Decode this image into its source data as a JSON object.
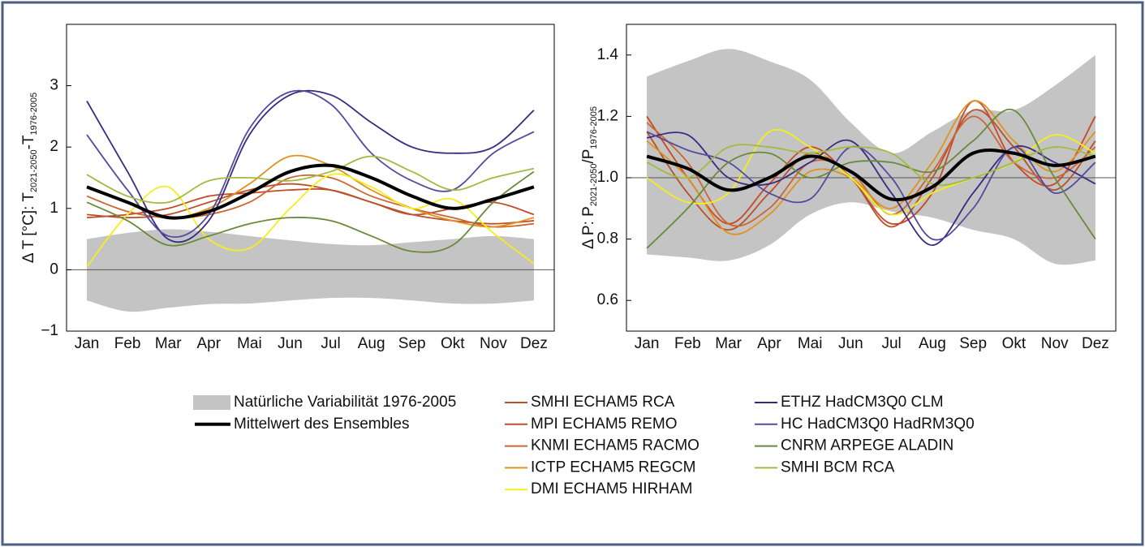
{
  "chart_data": [
    {
      "type": "line",
      "ylabel": [
        "Δ T [°C]: T",
        "2021-2050",
        "-T",
        "1976-2005"
      ],
      "categories": [
        "Jan",
        "Feb",
        "Mar",
        "Apr",
        "Mai",
        "Jun",
        "Jul",
        "Aug",
        "Sep",
        "Okt",
        "Nov",
        "Dez"
      ],
      "ylim": [
        -1,
        4
      ],
      "yticks": [
        {
          "value": -1,
          "label": "−1"
        },
        0,
        1,
        2,
        3
      ],
      "reference_line": 0,
      "band": {
        "name": "Natürliche Variabilität 1976-2005",
        "color": "#c4c4c4",
        "lower": [
          -0.5,
          -0.68,
          -0.62,
          -0.56,
          -0.55,
          -0.5,
          -0.46,
          -0.46,
          -0.5,
          -0.55,
          -0.55,
          -0.5
        ],
        "upper": [
          0.5,
          0.6,
          0.66,
          0.62,
          0.55,
          0.48,
          0.42,
          0.4,
          0.45,
          0.5,
          0.55,
          0.5
        ]
      },
      "series": [
        {
          "name": "SMHI ECHAM5 RCA",
          "color": "#c44a28",
          "values": [
            0.85,
            0.9,
            1.0,
            1.2,
            1.25,
            1.3,
            1.3,
            1.1,
            0.9,
            1.0,
            1.1,
            0.9
          ]
        },
        {
          "name": "MPI ECHAM5 REMO",
          "color": "#b8502c",
          "values": [
            0.9,
            0.85,
            0.9,
            1.1,
            1.3,
            1.4,
            1.3,
            1.1,
            0.9,
            0.8,
            0.75,
            0.8
          ]
        },
        {
          "name": "KNMI ECHAM5 RACMO",
          "color": "#cc6630",
          "values": [
            1.2,
            0.95,
            0.85,
            0.9,
            1.1,
            1.5,
            1.5,
            1.2,
            1.0,
            0.85,
            0.7,
            0.75
          ]
        },
        {
          "name": "ICTP ECHAM5 REGCM",
          "color": "#e0921e",
          "values": [
            1.35,
            1.1,
            0.85,
            1.0,
            1.4,
            1.85,
            1.7,
            1.3,
            1.0,
            0.8,
            0.7,
            0.85
          ]
        },
        {
          "name": "DMI ECHAM5 HIRHAM",
          "color": "#f4ee1c",
          "values": [
            0.05,
            0.9,
            1.35,
            0.5,
            0.35,
            1.0,
            1.55,
            1.35,
            1.0,
            1.15,
            0.6,
            0.1
          ]
        },
        {
          "name": "ETHZ HadCM3Q0 CLM",
          "color": "#3a2a82",
          "values": [
            2.75,
            1.6,
            0.5,
            0.8,
            2.2,
            2.85,
            2.85,
            2.4,
            2.0,
            1.9,
            2.0,
            2.6
          ]
        },
        {
          "name": "HC HadCM3Q0 HadRM3Q0",
          "color": "#524c9e",
          "values": [
            2.2,
            1.3,
            0.55,
            0.9,
            2.3,
            2.9,
            2.7,
            1.9,
            1.45,
            1.3,
            1.9,
            2.25
          ]
        },
        {
          "name": "CNRM ARPEGE ALADIN",
          "color": "#6a8a3a",
          "values": [
            1.1,
            0.8,
            0.4,
            0.55,
            0.75,
            0.85,
            0.8,
            0.55,
            0.3,
            0.4,
            1.1,
            1.6
          ]
        },
        {
          "name": "SMHI BCM RCA",
          "color": "#a2ba42",
          "values": [
            1.55,
            1.2,
            1.1,
            1.45,
            1.5,
            1.45,
            1.6,
            1.85,
            1.6,
            1.3,
            1.5,
            1.65
          ]
        }
      ],
      "mean": {
        "name": "Mittelwert des Ensembles",
        "color": "#000000",
        "values": [
          1.35,
          1.1,
          0.85,
          0.95,
          1.25,
          1.6,
          1.7,
          1.5,
          1.2,
          1.0,
          1.15,
          1.35
        ]
      }
    },
    {
      "type": "line",
      "ylabel": [
        "Δ P: P",
        "2021-2050",
        "/P",
        "1976-2005"
      ],
      "categories": [
        "Jan",
        "Feb",
        "Mar",
        "Apr",
        "Mai",
        "Jun",
        "Jul",
        "Aug",
        "Sep",
        "Okt",
        "Nov",
        "Dez"
      ],
      "ylim": [
        0.5,
        1.5
      ],
      "yticks": [
        0.6,
        0.8,
        {
          "value": 1,
          "label": "1.0"
        },
        1.2,
        1.4
      ],
      "reference_line": 1,
      "band": {
        "color": "#c4c4c4",
        "lower": [
          0.75,
          0.74,
          0.73,
          0.78,
          0.88,
          0.92,
          0.89,
          0.87,
          0.83,
          0.8,
          0.72,
          0.73
        ],
        "upper": [
          1.33,
          1.38,
          1.42,
          1.38,
          1.32,
          1.18,
          1.08,
          1.15,
          1.22,
          1.22,
          1.3,
          1.4
        ]
      },
      "series": [
        {
          "color": "#c44a28",
          "values": [
            1.2,
            1.0,
            0.85,
            0.98,
            1.1,
            1.0,
            0.85,
            0.95,
            1.25,
            1.05,
            0.98,
            1.2
          ]
        },
        {
          "color": "#b8502c",
          "values": [
            1.15,
            0.95,
            0.83,
            0.95,
            1.08,
            1.0,
            0.84,
            1.0,
            1.22,
            1.1,
            0.96,
            1.12
          ]
        },
        {
          "color": "#cc6630",
          "values": [
            1.18,
            1.05,
            0.85,
            0.9,
            1.05,
            1.02,
            0.88,
            1.02,
            1.2,
            1.05,
            1.0,
            1.1
          ]
        },
        {
          "color": "#e0921e",
          "values": [
            1.12,
            1.0,
            0.82,
            0.88,
            1.02,
            1.0,
            0.9,
            1.05,
            1.25,
            1.12,
            1.02,
            1.15
          ]
        },
        {
          "color": "#f4ee1c",
          "values": [
            1.0,
            0.92,
            0.95,
            1.15,
            1.1,
            1.0,
            0.88,
            0.95,
            1.0,
            1.05,
            1.14,
            1.08
          ]
        },
        {
          "color": "#3a2a82",
          "values": [
            1.13,
            1.14,
            1.0,
            0.98,
            1.05,
            1.12,
            0.95,
            0.78,
            0.95,
            1.1,
            1.05,
            0.98
          ]
        },
        {
          "color": "#524c9e",
          "values": [
            1.15,
            1.09,
            1.05,
            0.95,
            0.93,
            1.1,
            1.0,
            0.8,
            0.9,
            1.1,
            0.95,
            1.05
          ]
        },
        {
          "color": "#6a8a3a",
          "values": [
            0.77,
            0.9,
            1.05,
            1.08,
            1.0,
            1.05,
            1.05,
            1.02,
            1.12,
            1.22,
            1.0,
            0.8
          ]
        },
        {
          "color": "#a2ba42",
          "values": [
            1.05,
            1.0,
            1.1,
            1.1,
            1.08,
            1.1,
            1.08,
            0.98,
            1.0,
            1.05,
            1.1,
            1.07
          ]
        }
      ],
      "mean": {
        "color": "#000000",
        "values": [
          1.07,
          1.03,
          0.96,
          1.0,
          1.07,
          1.02,
          0.93,
          0.97,
          1.08,
          1.08,
          1.04,
          1.07
        ]
      }
    }
  ]
}
